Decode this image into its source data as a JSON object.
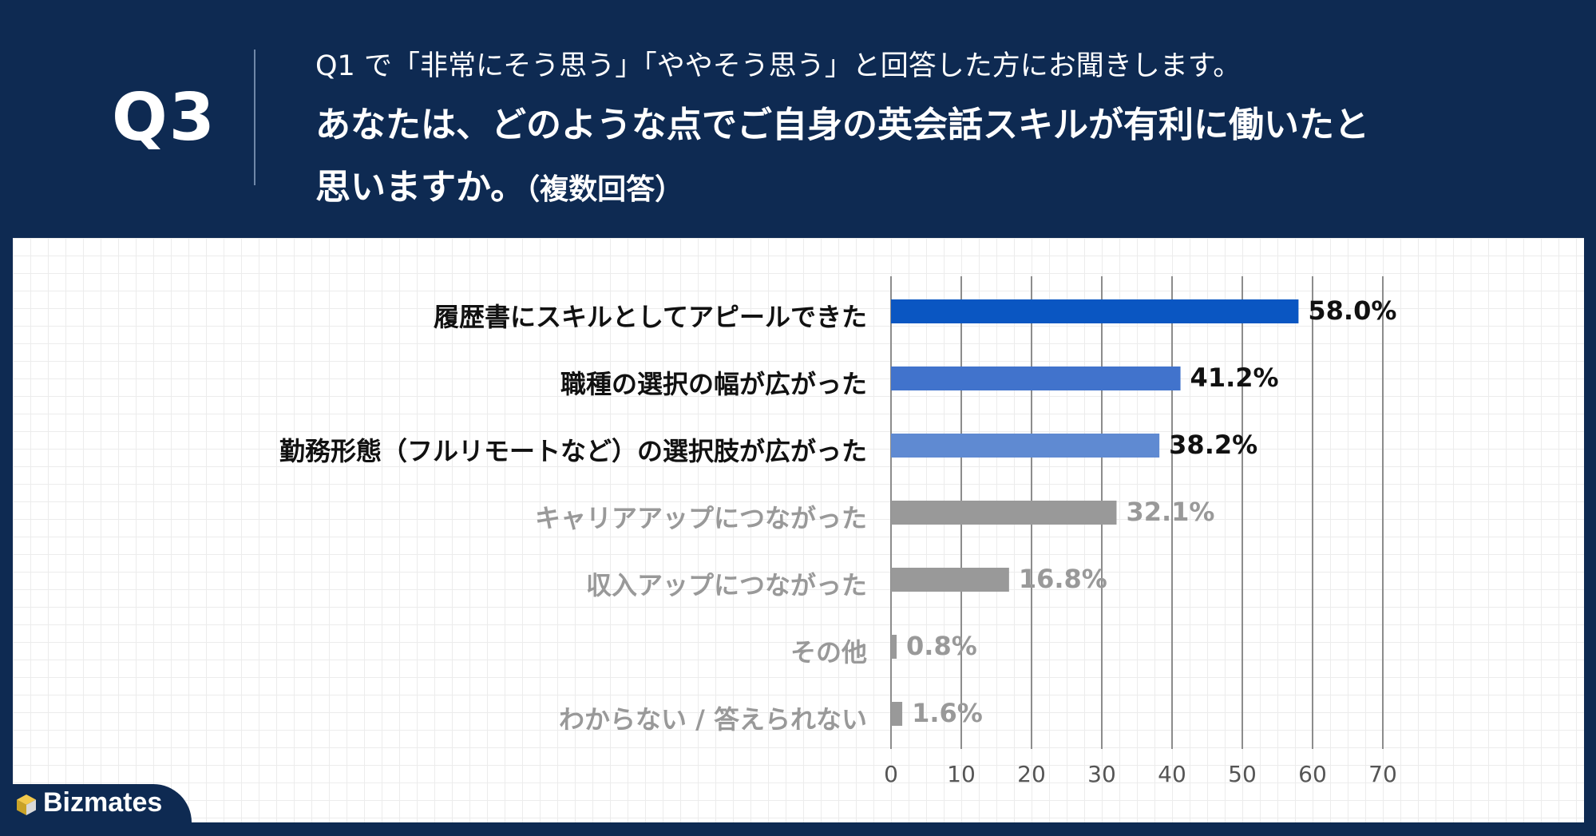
{
  "header": {
    "qnum": "Q3",
    "subtitle": "Q1 で「非常にそう思う」「ややそう思う」と回答した方にお聞きします。",
    "question_line1": "あなたは、どのような点でご自身の英会話スキルが有利に働いたと",
    "question_line2": "思いますか。",
    "question_note": "（複数回答）"
  },
  "brand": {
    "name": "Bizmates"
  },
  "chart_data": {
    "type": "bar",
    "orientation": "horizontal",
    "categories": [
      "履歴書にスキルとしてアピールできた",
      "職種の選択の幅が広がった",
      "勤務形態（フルリモートなど）の選択肢が広がった",
      "キャリアアップにつながった",
      "収入アップにつながった",
      "その他",
      "わからない / 答えられない"
    ],
    "values": [
      58.0,
      41.2,
      38.2,
      32.1,
      16.8,
      0.8,
      1.6
    ],
    "value_labels": [
      "58.0%",
      "41.2%",
      "38.2%",
      "32.1%",
      "16.8%",
      "0.8%",
      "1.6%"
    ],
    "bar_colors": [
      "#0a56c2",
      "#4173cc",
      "#5f8ad2",
      "#999999",
      "#999999",
      "#999999",
      "#999999"
    ],
    "label_colors": [
      "#111111",
      "#111111",
      "#111111",
      "#999999",
      "#999999",
      "#999999",
      "#999999"
    ],
    "xlim": [
      0,
      70
    ],
    "xticks": [
      0,
      10,
      20,
      30,
      40,
      50,
      60,
      70
    ],
    "xgrid": true
  }
}
